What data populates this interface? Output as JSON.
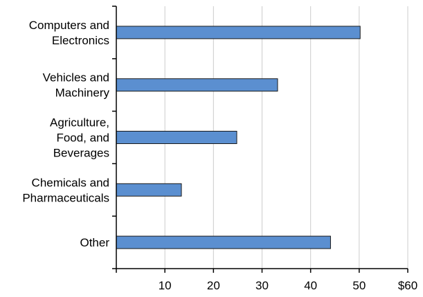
{
  "chart_data": {
    "type": "bar",
    "orientation": "horizontal",
    "title": "",
    "xlabel": "",
    "ylabel": "",
    "categories": [
      [
        "Computers and",
        "Electronics"
      ],
      [
        "Vehicles and",
        "Machinery"
      ],
      [
        "Agriculture,",
        "Food, and",
        "Beverages"
      ],
      [
        "Chemicals and",
        "Pharmaceuticals"
      ],
      [
        "Other"
      ]
    ],
    "values": [
      50.2,
      33.2,
      24.8,
      13.4,
      44.1
    ],
    "xlim": [
      0,
      60
    ],
    "xticks": [
      0,
      10,
      20,
      30,
      40,
      50,
      60
    ],
    "xtick_labels": [
      "",
      "10",
      "20",
      "30",
      "40",
      "50",
      "$60"
    ],
    "grid": "vertical",
    "bar_color": "#5b8fd0",
    "bar_edge_color": "#1a1a1a",
    "grid_color": "#cccccc"
  }
}
